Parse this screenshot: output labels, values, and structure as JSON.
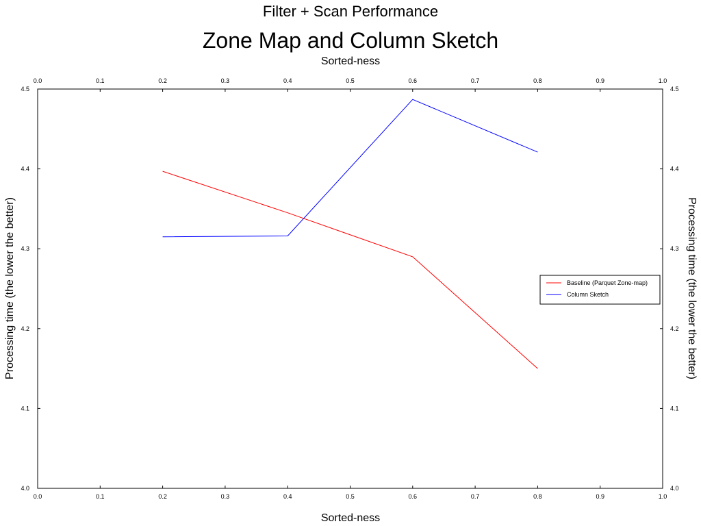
{
  "chart_data": {
    "type": "line",
    "suptitle": "Filter + Scan Performance",
    "title": "Zone Map and Column Sketch",
    "xlabel": "Sorted-ness",
    "xlabel_top": "Sorted-ness",
    "ylabel": "Processing time (the lower the better)",
    "ylabel_right": "Processing time (the lower the better)",
    "xlim": [
      0.0,
      1.0
    ],
    "ylim": [
      4.0,
      4.5
    ],
    "xticks": [
      "0.0",
      "0.1",
      "0.2",
      "0.3",
      "0.4",
      "0.5",
      "0.6",
      "0.7",
      "0.8",
      "0.9",
      "1.0"
    ],
    "yticks": [
      "4.0",
      "4.1",
      "4.2",
      "4.3",
      "4.4",
      "4.5"
    ],
    "grid": false,
    "legend_position": "center-right",
    "series": [
      {
        "name": "Baseline (Parquet Zone-map)",
        "color": "#ff0000",
        "x": [
          0.2,
          0.4,
          0.6,
          0.8
        ],
        "y": [
          4.397,
          4.345,
          4.29,
          4.15
        ]
      },
      {
        "name": "Column Sketch",
        "color": "#0000ff",
        "x": [
          0.2,
          0.4,
          0.6,
          0.8
        ],
        "y": [
          4.315,
          4.316,
          4.487,
          4.421
        ]
      }
    ]
  }
}
